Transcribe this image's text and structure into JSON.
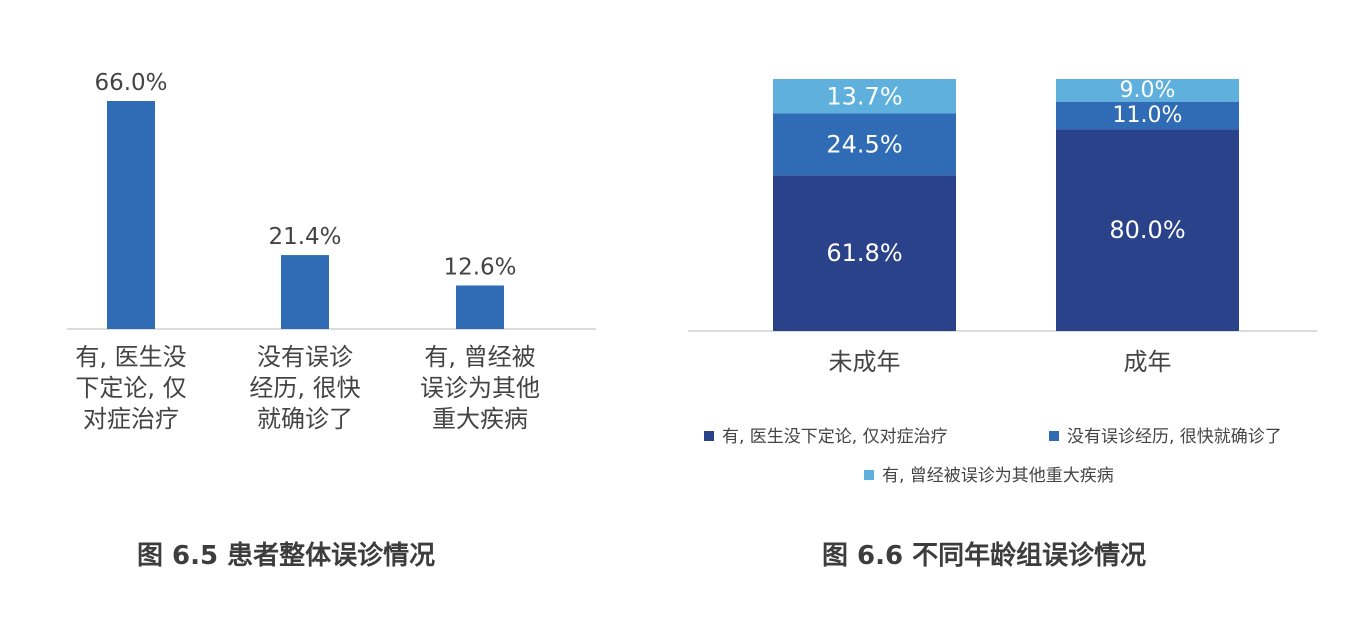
{
  "chart_data": [
    {
      "type": "bar",
      "categories": [
        "有, 医生没下定论, 仅对症治疗",
        "没有误诊经历, 很快就确诊了",
        "有, 曾经被误诊为其他重大疾病"
      ],
      "category_lines": [
        [
          "有, 医生没",
          "下定论, 仅",
          "对症治疗"
        ],
        [
          "没有误诊",
          "经历, 很快",
          "就确诊了"
        ],
        [
          "有, 曾经被",
          "误诊为其他",
          "重大疾病"
        ]
      ],
      "values": [
        66.0,
        21.4,
        12.6
      ],
      "value_labels": [
        "66.0%",
        "21.4%",
        "12.6%"
      ],
      "ylim": [
        0,
        70
      ],
      "grid": false,
      "color": "#2F6CB5"
    },
    {
      "type": "bar",
      "stacked": true,
      "categories": [
        "未成年",
        "成年"
      ],
      "series": [
        {
          "name": "有, 医生没下定论, 仅对症治疗",
          "values": [
            61.8,
            80.0
          ],
          "labels": [
            "61.8%",
            "80.0%"
          ],
          "color": "#2A428A"
        },
        {
          "name": "没有误诊经历, 很快就确诊了",
          "values": [
            24.5,
            11.0
          ],
          "labels": [
            "24.5%",
            "11.0%"
          ],
          "color": "#2F6CB5"
        },
        {
          "name": "有, 曾经被误诊为其他重大疾病",
          "values": [
            13.7,
            9.0
          ],
          "labels": [
            "13.7%",
            "9.0%"
          ],
          "color": "#5FB0DD"
        }
      ],
      "ylim": [
        0,
        100
      ],
      "grid": false,
      "legend": "bottom"
    }
  ],
  "captions": {
    "fig1": "图 6.5 患者整体误诊情况",
    "fig2": "图 6.6 不同年龄组误诊情况"
  }
}
